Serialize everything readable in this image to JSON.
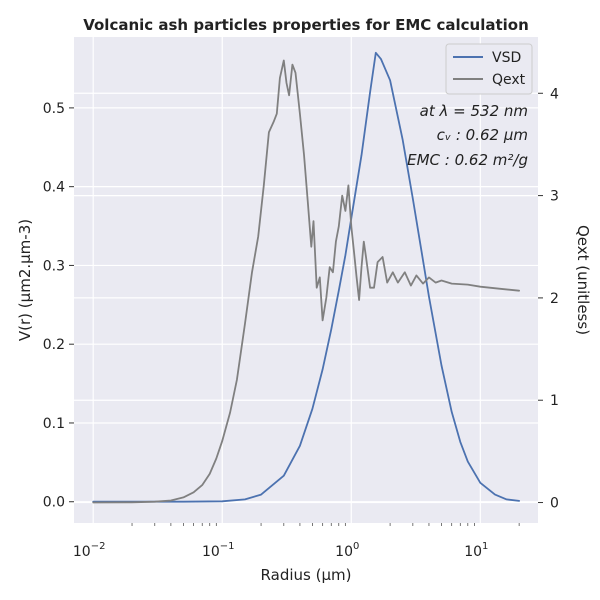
{
  "chart_data": {
    "type": "line",
    "title": "Volcanic ash particles properties for EMC calculation",
    "xlabel": "Radius (µm)",
    "ylabel_left": "V(r) (µm2.µm-3)",
    "ylabel_right": "Qext (unitless)",
    "x_scale": "log",
    "xlim": [
      0.0071,
      28
    ],
    "ylim_left": [
      -0.027,
      0.59
    ],
    "ylim_right": [
      -0.2,
      4.55
    ],
    "grid": true,
    "legend_placement": "top-right",
    "x_ticks": [
      {
        "value": 0.01,
        "base": "10",
        "exp": "−2"
      },
      {
        "value": 0.1,
        "base": "10",
        "exp": "−1"
      },
      {
        "value": 1,
        "base": "10",
        "exp": "0"
      },
      {
        "value": 10,
        "base": "10",
        "exp": "1"
      }
    ],
    "y_ticks_left": [
      {
        "value": 0.0,
        "label": "0.0"
      },
      {
        "value": 0.1,
        "label": "0.1"
      },
      {
        "value": 0.2,
        "label": "0.2"
      },
      {
        "value": 0.3,
        "label": "0.3"
      },
      {
        "value": 0.4,
        "label": "0.4"
      },
      {
        "value": 0.5,
        "label": "0.5"
      }
    ],
    "y_ticks_right": [
      {
        "value": 0,
        "label": "0"
      },
      {
        "value": 1,
        "label": "1"
      },
      {
        "value": 2,
        "label": "2"
      },
      {
        "value": 3,
        "label": "3"
      },
      {
        "value": 4,
        "label": "4"
      }
    ],
    "annotations": [
      "at λ = 532 nm",
      "cᵥ : 0.62 µm",
      "EMC : 0.62 m²/g"
    ],
    "series": [
      {
        "name": "VSD",
        "axis": "left",
        "color": "#4c72b0",
        "points": [
          [
            0.01,
            0.0
          ],
          [
            0.05,
            0.0
          ],
          [
            0.1,
            0.0005
          ],
          [
            0.15,
            0.003
          ],
          [
            0.2,
            0.009
          ],
          [
            0.3,
            0.033
          ],
          [
            0.4,
            0.071
          ],
          [
            0.5,
            0.118
          ],
          [
            0.6,
            0.168
          ],
          [
            0.7,
            0.219
          ],
          [
            0.8,
            0.268
          ],
          [
            0.9,
            0.313
          ],
          [
            1.0,
            0.36
          ],
          [
            1.2,
            0.44
          ],
          [
            1.4,
            0.52
          ],
          [
            1.55,
            0.57
          ],
          [
            1.7,
            0.562
          ],
          [
            2.0,
            0.535
          ],
          [
            2.5,
            0.46
          ],
          [
            3.0,
            0.385
          ],
          [
            3.5,
            0.318
          ],
          [
            4.0,
            0.26
          ],
          [
            5.0,
            0.173
          ],
          [
            6.0,
            0.114
          ],
          [
            7.0,
            0.076
          ],
          [
            8.0,
            0.051
          ],
          [
            10.0,
            0.024
          ],
          [
            13.0,
            0.009
          ],
          [
            16.0,
            0.003
          ],
          [
            20.0,
            0.001
          ]
        ]
      },
      {
        "name": "Qext",
        "axis": "right",
        "color": "#808080",
        "points": [
          [
            0.01,
            0.0
          ],
          [
            0.02,
            0.002
          ],
          [
            0.03,
            0.008
          ],
          [
            0.04,
            0.02
          ],
          [
            0.05,
            0.05
          ],
          [
            0.06,
            0.1
          ],
          [
            0.07,
            0.17
          ],
          [
            0.08,
            0.28
          ],
          [
            0.09,
            0.43
          ],
          [
            0.1,
            0.6
          ],
          [
            0.115,
            0.88
          ],
          [
            0.13,
            1.2
          ],
          [
            0.15,
            1.75
          ],
          [
            0.17,
            2.25
          ],
          [
            0.19,
            2.6
          ],
          [
            0.21,
            3.1
          ],
          [
            0.23,
            3.62
          ],
          [
            0.25,
            3.72
          ],
          [
            0.265,
            3.8
          ],
          [
            0.28,
            4.15
          ],
          [
            0.3,
            4.32
          ],
          [
            0.315,
            4.1
          ],
          [
            0.33,
            3.98
          ],
          [
            0.35,
            4.28
          ],
          [
            0.37,
            4.2
          ],
          [
            0.4,
            3.8
          ],
          [
            0.43,
            3.4
          ],
          [
            0.46,
            2.95
          ],
          [
            0.49,
            2.5
          ],
          [
            0.51,
            2.75
          ],
          [
            0.54,
            2.1
          ],
          [
            0.57,
            2.2
          ],
          [
            0.6,
            1.78
          ],
          [
            0.64,
            2.0
          ],
          [
            0.68,
            2.3
          ],
          [
            0.72,
            2.25
          ],
          [
            0.76,
            2.55
          ],
          [
            0.8,
            2.7
          ],
          [
            0.85,
            3.0
          ],
          [
            0.9,
            2.85
          ],
          [
            0.95,
            3.1
          ],
          [
            1.0,
            2.7
          ],
          [
            1.05,
            2.45
          ],
          [
            1.1,
            2.2
          ],
          [
            1.15,
            1.98
          ],
          [
            1.2,
            2.3
          ],
          [
            1.25,
            2.55
          ],
          [
            1.3,
            2.4
          ],
          [
            1.4,
            2.1
          ],
          [
            1.5,
            2.1
          ],
          [
            1.6,
            2.35
          ],
          [
            1.75,
            2.4
          ],
          [
            1.9,
            2.15
          ],
          [
            2.1,
            2.25
          ],
          [
            2.3,
            2.15
          ],
          [
            2.6,
            2.25
          ],
          [
            2.9,
            2.12
          ],
          [
            3.2,
            2.22
          ],
          [
            3.6,
            2.14
          ],
          [
            4.0,
            2.2
          ],
          [
            4.5,
            2.15
          ],
          [
            5.0,
            2.17
          ],
          [
            6.0,
            2.14
          ],
          [
            8.0,
            2.13
          ],
          [
            10.0,
            2.11
          ],
          [
            14.0,
            2.09
          ],
          [
            20.0,
            2.07
          ]
        ]
      }
    ]
  }
}
